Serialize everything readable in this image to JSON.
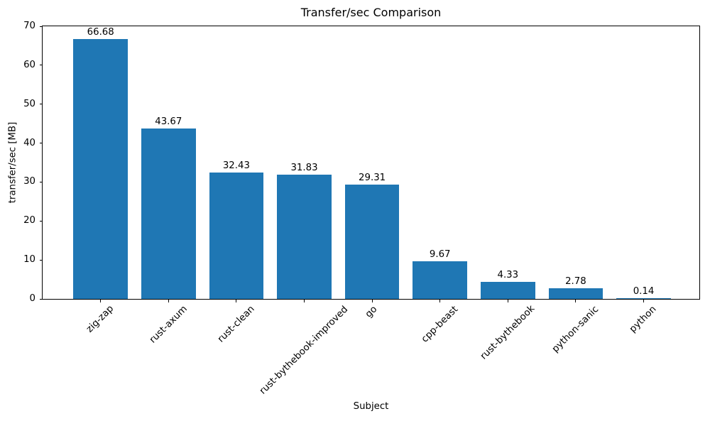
{
  "chart_data": {
    "type": "bar",
    "title": "Transfer/sec Comparison",
    "xlabel": "Subject",
    "ylabel": "transfer/sec [MB]",
    "categories": [
      "zig-zap",
      "rust-axum",
      "rust-clean",
      "rust-bythebook-improved",
      "go",
      "cpp-beast",
      "rust-bythebook",
      "python-sanic",
      "python"
    ],
    "values": [
      66.68,
      43.67,
      32.43,
      31.83,
      29.31,
      9.67,
      4.33,
      2.78,
      0.14
    ],
    "bar_value_labels": [
      "66.68",
      "43.67",
      "32.43",
      "31.83",
      "29.31",
      "9.67",
      "4.33",
      "2.78",
      "0.14"
    ],
    "ylim": [
      0,
      70
    ],
    "yticks": [
      0,
      10,
      20,
      30,
      40,
      50,
      60,
      70
    ],
    "bar_color": "#1f77b4",
    "text_color": "#000000",
    "grid": false,
    "legend_position": "none",
    "x_tick_rotation_deg": 45
  }
}
